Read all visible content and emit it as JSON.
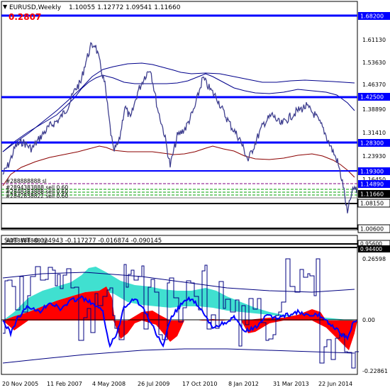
{
  "main_header": {
    "symbol_tf": "EURUSD,Weekly",
    "ohlc": "1.10055 1.12772 1.09541 1.11660",
    "big_value": "0.2807"
  },
  "price_axis": {
    "labels": [
      "1.61130",
      "1.53630",
      "1.46370",
      "1.38890",
      "1.31410",
      "1.23930",
      "1.16450",
      "1.11660",
      "1.08150",
      "1.00600",
      "0.94400"
    ]
  },
  "levels": {
    "l1": "1.68200",
    "l2": "1.42500",
    "l3": "1.28300",
    "l4": "1.19300",
    "l5": "1.14890",
    "l6": "1.11660",
    "l7": "1.08150",
    "l8": "1.00600",
    "l9": "0.95600",
    "l10": "0.94400"
  },
  "order_labels": {
    "sl": "#288888888 sl",
    "sell1": "#2894383888 sell 0.60",
    "sell2": "#2848383888 sell 0.60",
    "sell3": "#2842838822 sell 0.60",
    "tp": "#288888888 tp"
  },
  "sub_header": {
    "text": "SWT_WT -0.024943 -0.117277 -0.016874 -0.090145"
  },
  "sub_axis": {
    "top": "0.26598",
    "zero": "0.00",
    "bottom": "-0.22861"
  },
  "time_axis": {
    "labels": [
      "20 Nov 2005",
      "11 Feb 2007",
      "4 May 2008",
      "26 Jul 2009",
      "17 Oct 2010",
      "8 Jan 2012",
      "31 Mar 2013",
      "22 Jun 2014"
    ]
  },
  "colors": {
    "price_line": "#3f3f8f",
    "level_blue": "#0000ff",
    "ma_dark_red": "#8b0000",
    "ma_blue": "#00008b",
    "turquoise": "#40e0d0",
    "red_fill": "#ff0000",
    "osc_blue": "#0000ff",
    "osc_navy": "#000080"
  }
}
